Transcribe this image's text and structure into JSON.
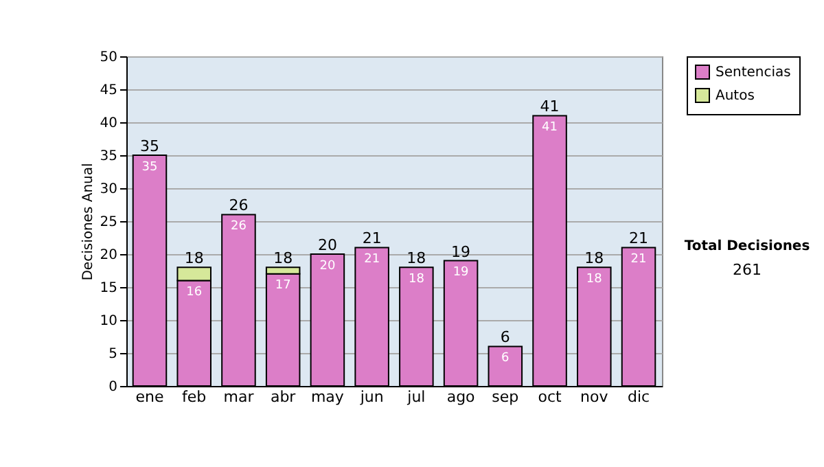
{
  "chart_data": {
    "type": "bar",
    "stacked": true,
    "ylabel": "Decisiones Anual",
    "categories": [
      "ene",
      "feb",
      "mar",
      "abr",
      "may",
      "jun",
      "jul",
      "ago",
      "sep",
      "oct",
      "nov",
      "dic"
    ],
    "series": [
      {
        "name": "Sentencias",
        "color": "#dc7ec8",
        "values": [
          35,
          16,
          26,
          17,
          20,
          21,
          18,
          19,
          6,
          41,
          18,
          21
        ],
        "value_labels": [
          "35",
          "16",
          "26",
          "17",
          "20",
          "21",
          "18",
          "19",
          "6",
          "41",
          "18",
          "21"
        ]
      },
      {
        "name": "Autos",
        "color": "#d6e89a",
        "values": [
          null,
          2,
          null,
          1,
          null,
          null,
          null,
          null,
          null,
          null,
          null,
          null
        ]
      }
    ],
    "totals": [
      "35",
      "18",
      "26",
      "18",
      "20",
      "21",
      "18",
      "19",
      "6",
      "41",
      "18",
      "21"
    ],
    "ylim": [
      0,
      50
    ],
    "yticks": [
      0,
      5,
      10,
      15,
      20,
      25,
      30,
      35,
      40,
      45,
      50
    ],
    "grid": "y",
    "legend": "right",
    "annotations": [
      "Total Decisiones",
      "261"
    ]
  }
}
